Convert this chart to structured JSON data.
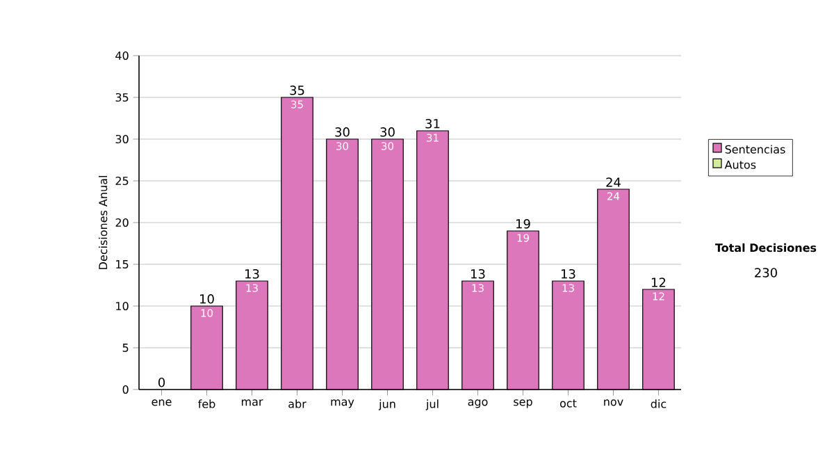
{
  "chart_data": {
    "type": "bar",
    "stacked": true,
    "ylabel": "Decisiones Anual",
    "categories": [
      "ene",
      "feb",
      "mar",
      "abr",
      "may",
      "jun",
      "jul",
      "ago",
      "sep",
      "oct",
      "nov",
      "dic"
    ],
    "series": [
      {
        "name": "Sentencias",
        "color": "#dd77bb",
        "values": [
          0,
          10,
          13,
          35,
          30,
          30,
          31,
          13,
          19,
          13,
          24,
          12
        ],
        "value_labels": [
          null,
          "10",
          "13",
          "35",
          "30",
          "30",
          "31",
          "13",
          "19",
          "13",
          "24",
          "12"
        ]
      },
      {
        "name": "Autos",
        "color": "#d4ec9c",
        "values": [
          0,
          0,
          0,
          0,
          0,
          0,
          0,
          0,
          0,
          0,
          0,
          0
        ]
      }
    ],
    "totals": [
      "0",
      "10",
      "13",
      "35",
      "30",
      "30",
      "31",
      "13",
      "19",
      "13",
      "24",
      "12"
    ],
    "ylim": [
      0,
      40
    ],
    "yticks": [
      0,
      5,
      10,
      15,
      20,
      25,
      30,
      35,
      40
    ],
    "grid": "y",
    "legend": "right",
    "annotations": [
      "Total Decisiones",
      "230"
    ]
  }
}
